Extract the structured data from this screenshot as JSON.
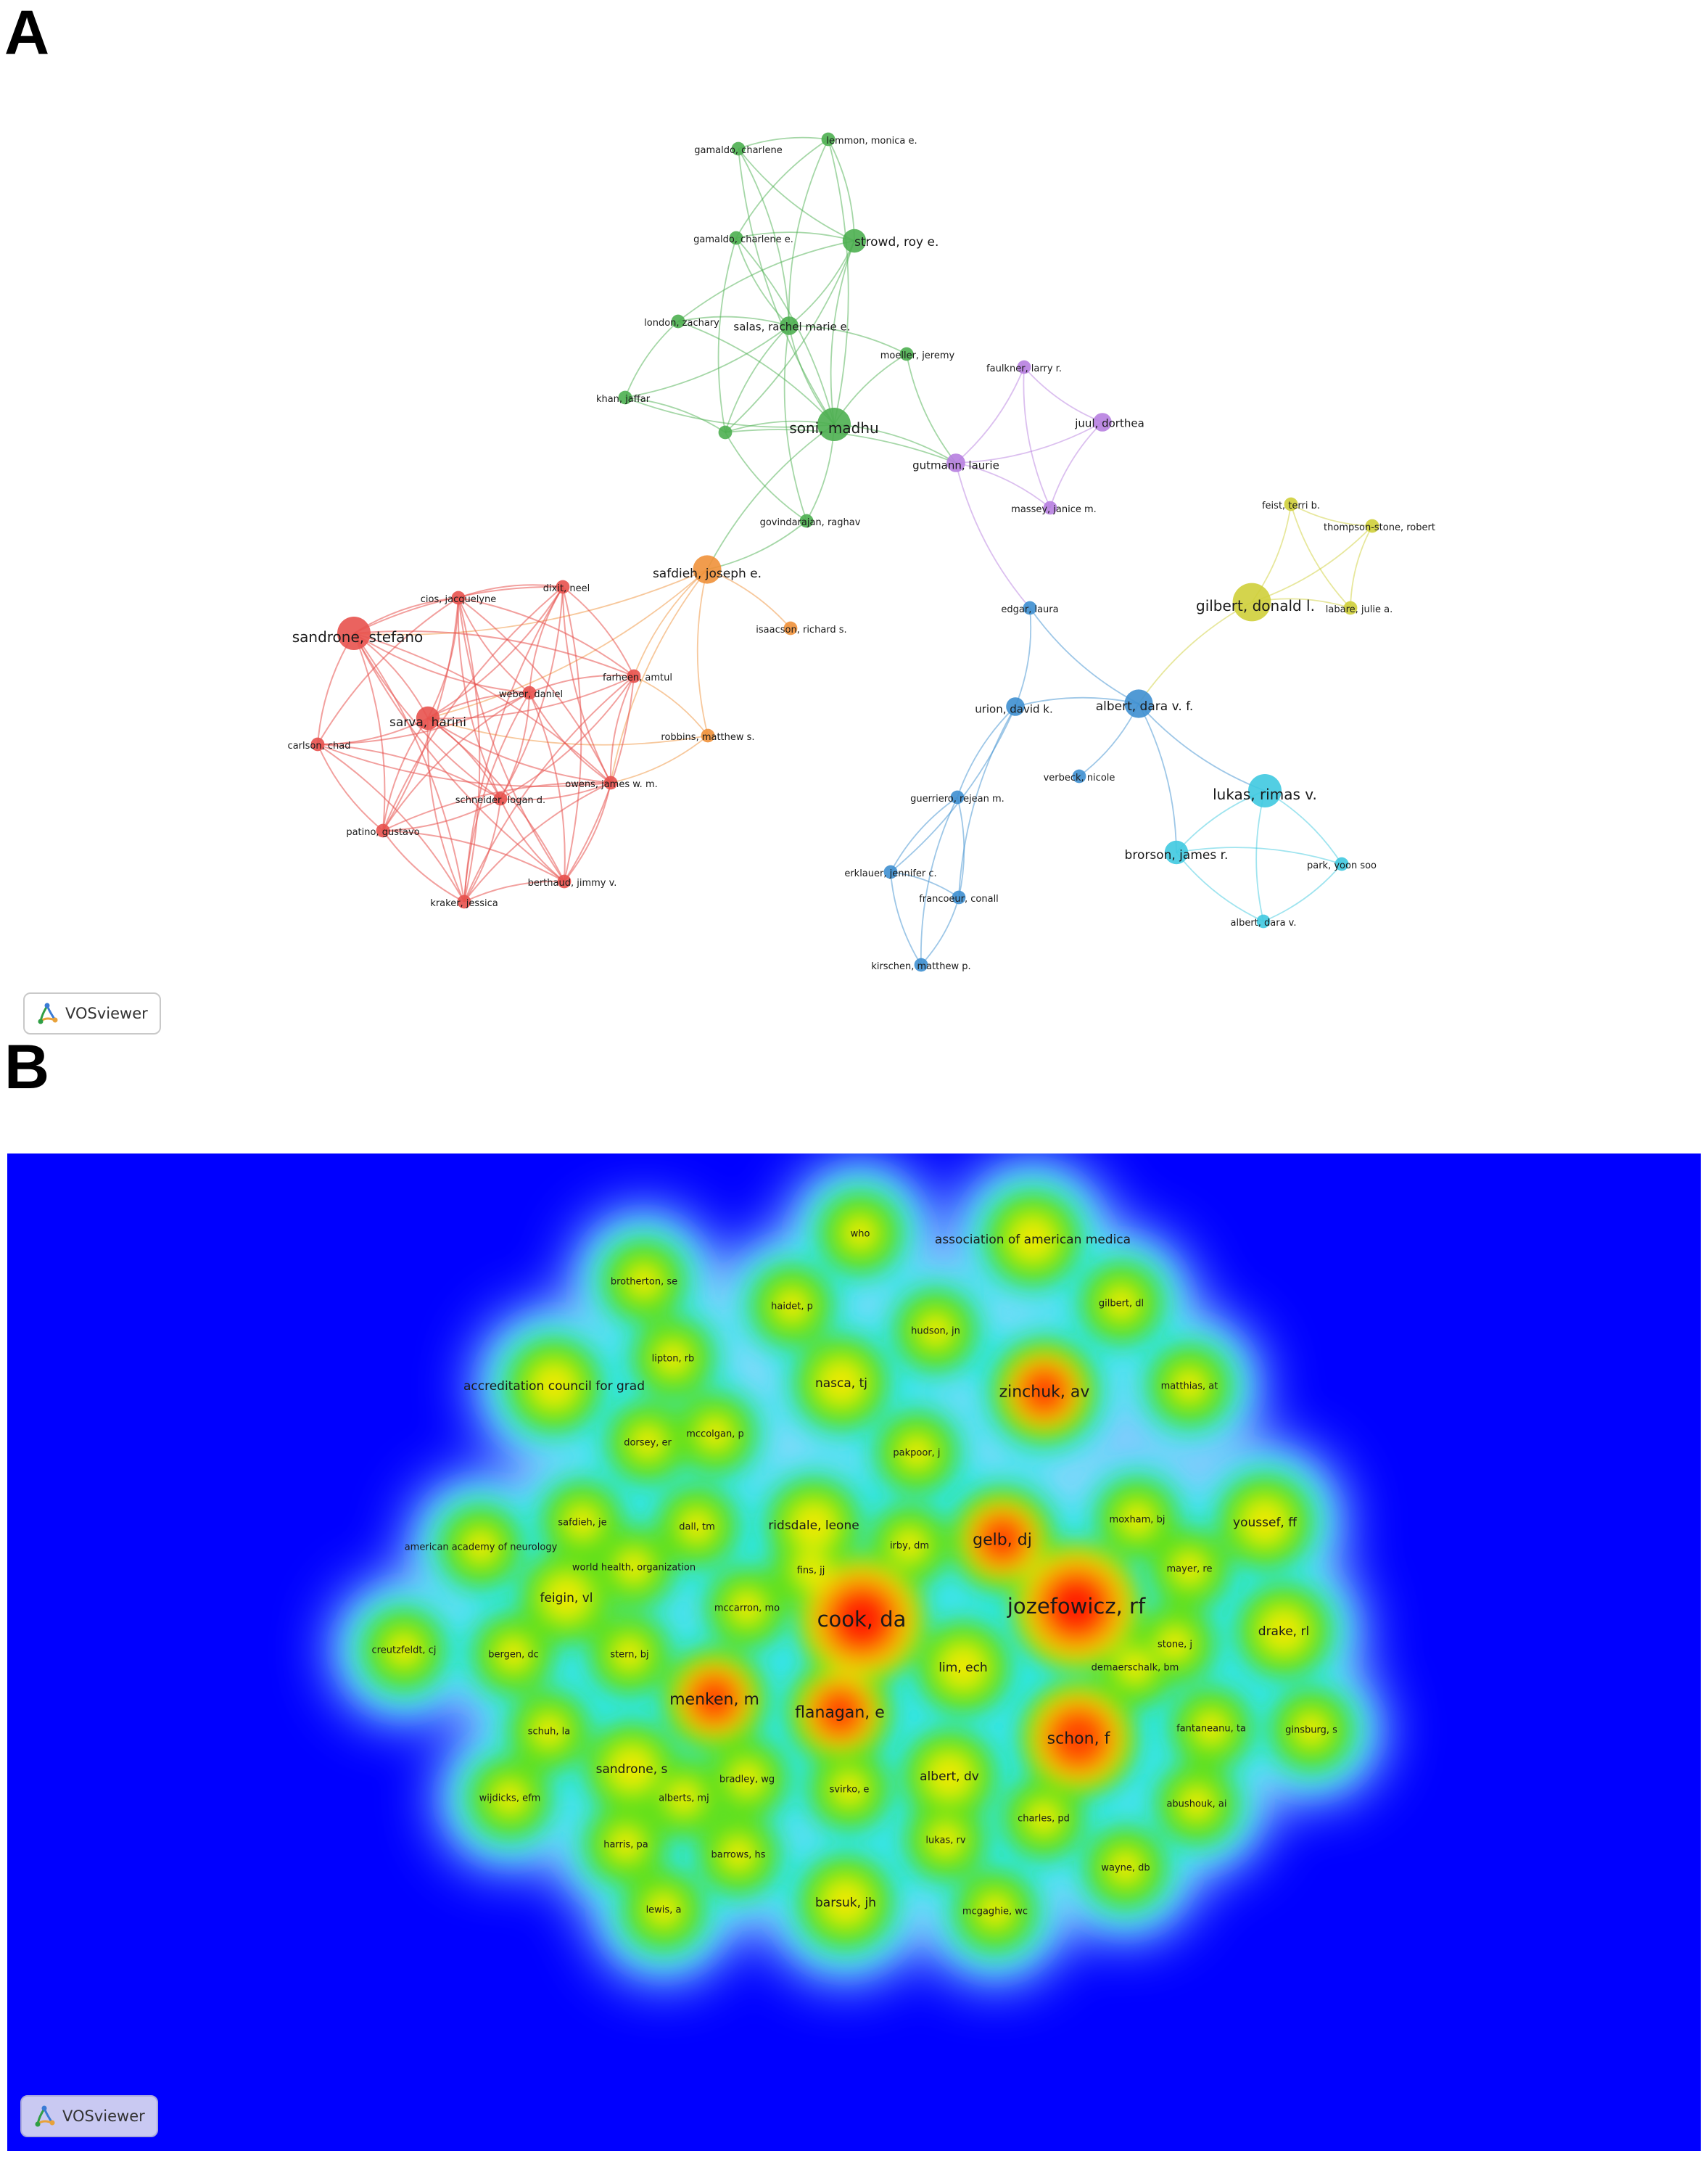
{
  "panel_a": {
    "letter": "A",
    "badge": {
      "icon": "vosviewer-logo-icon",
      "text": "VOSviewer"
    },
    "clusters": {
      "red": "#e8524e",
      "green": "#4caf50",
      "purple": "#b77fe0",
      "orange": "#f0913a",
      "yellow": "#cfcf3a",
      "blue": "#3e8fd0",
      "cyan": "#3fc9e0"
    },
    "nodes": [
      {
        "id": "gamaldo_charlene",
        "label": "gamaldo, charlene",
        "cluster": "green",
        "weight": 1
      },
      {
        "id": "lemmon",
        "label": "lemmon, monica e.",
        "cluster": "green",
        "weight": 1
      },
      {
        "id": "gamaldo_charlene_e",
        "label": "gamaldo, charlene e.",
        "cluster": "green",
        "weight": 1
      },
      {
        "id": "strowd",
        "label": "strowd, roy e.",
        "cluster": "green",
        "weight": 3
      },
      {
        "id": "london",
        "label": "london, zachary",
        "cluster": "green",
        "weight": 1
      },
      {
        "id": "salas",
        "label": "salas, rachel marie e.",
        "cluster": "green",
        "weight": 2
      },
      {
        "id": "moeller",
        "label": "moeller, jeremy",
        "cluster": "green",
        "weight": 1
      },
      {
        "id": "khan",
        "label": "khan, jaffar",
        "cluster": "green",
        "weight": 1
      },
      {
        "id": "soni",
        "label": "soni, madhu",
        "cluster": "green",
        "weight": 5
      },
      {
        "id": "green_unlabeled",
        "label": "",
        "cluster": "green",
        "weight": 1
      },
      {
        "id": "govindarajan",
        "label": "govindarajan, raghav",
        "cluster": "green",
        "weight": 1
      },
      {
        "id": "faulkner",
        "label": "faulkner, larry r.",
        "cluster": "purple",
        "weight": 1
      },
      {
        "id": "juul",
        "label": "juul, dorthea",
        "cluster": "purple",
        "weight": 2
      },
      {
        "id": "gutmann",
        "label": "gutmann, laurie",
        "cluster": "purple",
        "weight": 2
      },
      {
        "id": "massey",
        "label": "massey, janice m.",
        "cluster": "purple",
        "weight": 1
      },
      {
        "id": "safdieh",
        "label": "safdieh, joseph e.",
        "cluster": "orange",
        "weight": 4
      },
      {
        "id": "isaacson",
        "label": "isaacson, richard s.",
        "cluster": "orange",
        "weight": 1
      },
      {
        "id": "robbins",
        "label": "robbins, matthew s.",
        "cluster": "orange",
        "weight": 1
      },
      {
        "id": "feist",
        "label": "feist, terri b.",
        "cluster": "yellow",
        "weight": 1
      },
      {
        "id": "thompson",
        "label": "thompson-stone, robert",
        "cluster": "yellow",
        "weight": 1
      },
      {
        "id": "gilbert",
        "label": "gilbert, donald l.",
        "cluster": "yellow",
        "weight": 6
      },
      {
        "id": "labare",
        "label": "labare, julie a.",
        "cluster": "yellow",
        "weight": 1
      },
      {
        "id": "cios",
        "label": "cios, jacquelyne",
        "cluster": "red",
        "weight": 1
      },
      {
        "id": "dixit",
        "label": "dixit, neel",
        "cluster": "red",
        "weight": 1
      },
      {
        "id": "sandrone",
        "label": "sandrone, stefano",
        "cluster": "red",
        "weight": 5
      },
      {
        "id": "farheen",
        "label": "farheen, amtul",
        "cluster": "red",
        "weight": 1
      },
      {
        "id": "weber",
        "label": "weber, daniel",
        "cluster": "red",
        "weight": 1
      },
      {
        "id": "sarva",
        "label": "sarva, harini",
        "cluster": "red",
        "weight": 3
      },
      {
        "id": "carlson",
        "label": "carlson, chad",
        "cluster": "red",
        "weight": 1
      },
      {
        "id": "owens",
        "label": "owens, james w. m.",
        "cluster": "red",
        "weight": 1
      },
      {
        "id": "schneider",
        "label": "schneider, logan d.",
        "cluster": "red",
        "weight": 1
      },
      {
        "id": "patino",
        "label": "patino, gustavo",
        "cluster": "red",
        "weight": 1
      },
      {
        "id": "berthaud",
        "label": "berthaud, jimmy v.",
        "cluster": "red",
        "weight": 1
      },
      {
        "id": "kraker",
        "label": "kraker, jessica",
        "cluster": "red",
        "weight": 1
      },
      {
        "id": "edgar",
        "label": "edgar, laura",
        "cluster": "blue",
        "weight": 1
      },
      {
        "id": "urion",
        "label": "urion, david k.",
        "cluster": "blue",
        "weight": 2
      },
      {
        "id": "albert_dvf",
        "label": "albert, dara v. f.",
        "cluster": "blue",
        "weight": 4
      },
      {
        "id": "verbeck",
        "label": "verbeck, nicole",
        "cluster": "blue",
        "weight": 1
      },
      {
        "id": "guerriero",
        "label": "guerriero, rejean m.",
        "cluster": "blue",
        "weight": 1
      },
      {
        "id": "erklauer",
        "label": "erklauer, jennifer c.",
        "cluster": "blue",
        "weight": 1
      },
      {
        "id": "francoeur",
        "label": "francoeur, conall",
        "cluster": "blue",
        "weight": 1
      },
      {
        "id": "kirschen",
        "label": "kirschen, matthew p.",
        "cluster": "blue",
        "weight": 1
      },
      {
        "id": "lukas",
        "label": "lukas, rimas v.",
        "cluster": "cyan",
        "weight": 5
      },
      {
        "id": "brorson",
        "label": "brorson, james r.",
        "cluster": "cyan",
        "weight": 3
      },
      {
        "id": "park",
        "label": "park, yoon soo",
        "cluster": "cyan",
        "weight": 1
      },
      {
        "id": "albert_dv",
        "label": "albert, dara v.",
        "cluster": "cyan",
        "weight": 1
      }
    ],
    "edges": [
      [
        "gamaldo_charlene",
        "lemmon"
      ],
      [
        "gamaldo_charlene",
        "strowd"
      ],
      [
        "gamaldo_charlene",
        "salas"
      ],
      [
        "gamaldo_charlene",
        "soni"
      ],
      [
        "lemmon",
        "strowd"
      ],
      [
        "lemmon",
        "salas"
      ],
      [
        "lemmon",
        "soni"
      ],
      [
        "lemmon",
        "gamaldo_charlene_e"
      ],
      [
        "gamaldo_charlene_e",
        "strowd"
      ],
      [
        "gamaldo_charlene_e",
        "salas"
      ],
      [
        "gamaldo_charlene_e",
        "soni"
      ],
      [
        "gamaldo_charlene_e",
        "green_unlabeled"
      ],
      [
        "strowd",
        "salas"
      ],
      [
        "strowd",
        "soni"
      ],
      [
        "strowd",
        "green_unlabeled"
      ],
      [
        "strowd",
        "london"
      ],
      [
        "london",
        "salas"
      ],
      [
        "london",
        "khan"
      ],
      [
        "london",
        "soni"
      ],
      [
        "salas",
        "soni"
      ],
      [
        "salas",
        "moeller"
      ],
      [
        "salas",
        "green_unlabeled"
      ],
      [
        "salas",
        "khan"
      ],
      [
        "salas",
        "govindarajan"
      ],
      [
        "khan",
        "green_unlabeled"
      ],
      [
        "khan",
        "soni"
      ],
      [
        "soni",
        "moeller"
      ],
      [
        "soni",
        "green_unlabeled"
      ],
      [
        "soni",
        "govindarajan"
      ],
      [
        "soni",
        "safdieh"
      ],
      [
        "soni",
        "gutmann"
      ],
      [
        "green_unlabeled",
        "govindarajan"
      ],
      [
        "green_unlabeled",
        "gutmann"
      ],
      [
        "moeller",
        "gutmann"
      ],
      [
        "govindarajan",
        "safdieh"
      ],
      [
        "faulkner",
        "juul"
      ],
      [
        "faulkner",
        "gutmann"
      ],
      [
        "faulkner",
        "massey"
      ],
      [
        "juul",
        "gutmann"
      ],
      [
        "juul",
        "massey"
      ],
      [
        "gutmann",
        "massey"
      ],
      [
        "gutmann",
        "edgar"
      ],
      [
        "safdieh",
        "isaacson"
      ],
      [
        "safdieh",
        "robbins"
      ],
      [
        "safdieh",
        "sandrone"
      ],
      [
        "safdieh",
        "farheen"
      ],
      [
        "safdieh",
        "sarva"
      ],
      [
        "safdieh",
        "owens"
      ],
      [
        "robbins",
        "sarva"
      ],
      [
        "robbins",
        "farheen"
      ],
      [
        "robbins",
        "owens"
      ],
      [
        "feist",
        "thompson"
      ],
      [
        "feist",
        "gilbert"
      ],
      [
        "feist",
        "labare"
      ],
      [
        "thompson",
        "gilbert"
      ],
      [
        "thompson",
        "labare"
      ],
      [
        "gilbert",
        "labare"
      ],
      [
        "gilbert",
        "albert_dvf"
      ],
      [
        "cios",
        "dixit"
      ],
      [
        "cios",
        "sandrone"
      ],
      [
        "cios",
        "farheen"
      ],
      [
        "cios",
        "weber"
      ],
      [
        "cios",
        "sarva"
      ],
      [
        "cios",
        "carlson"
      ],
      [
        "cios",
        "owens"
      ],
      [
        "cios",
        "schneider"
      ],
      [
        "cios",
        "patino"
      ],
      [
        "cios",
        "berthaud"
      ],
      [
        "cios",
        "kraker"
      ],
      [
        "dixit",
        "sandrone"
      ],
      [
        "dixit",
        "farheen"
      ],
      [
        "dixit",
        "weber"
      ],
      [
        "dixit",
        "sarva"
      ],
      [
        "dixit",
        "owens"
      ],
      [
        "dixit",
        "schneider"
      ],
      [
        "dixit",
        "patino"
      ],
      [
        "dixit",
        "berthaud"
      ],
      [
        "dixit",
        "kraker"
      ],
      [
        "sandrone",
        "farheen"
      ],
      [
        "sandrone",
        "weber"
      ],
      [
        "sandrone",
        "sarva"
      ],
      [
        "sandrone",
        "carlson"
      ],
      [
        "sandrone",
        "owens"
      ],
      [
        "sandrone",
        "schneider"
      ],
      [
        "sandrone",
        "patino"
      ],
      [
        "sandrone",
        "berthaud"
      ],
      [
        "sandrone",
        "kraker"
      ],
      [
        "farheen",
        "weber"
      ],
      [
        "farheen",
        "sarva"
      ],
      [
        "farheen",
        "owens"
      ],
      [
        "farheen",
        "schneider"
      ],
      [
        "farheen",
        "kraker"
      ],
      [
        "farheen",
        "berthaud"
      ],
      [
        "weber",
        "sarva"
      ],
      [
        "weber",
        "carlson"
      ],
      [
        "weber",
        "owens"
      ],
      [
        "weber",
        "schneider"
      ],
      [
        "weber",
        "patino"
      ],
      [
        "weber",
        "berthaud"
      ],
      [
        "weber",
        "kraker"
      ],
      [
        "sarva",
        "carlson"
      ],
      [
        "sarva",
        "owens"
      ],
      [
        "sarva",
        "schneider"
      ],
      [
        "sarva",
        "patino"
      ],
      [
        "sarva",
        "berthaud"
      ],
      [
        "sarva",
        "kraker"
      ],
      [
        "carlson",
        "schneider"
      ],
      [
        "carlson",
        "patino"
      ],
      [
        "carlson",
        "kraker"
      ],
      [
        "carlson",
        "owens"
      ],
      [
        "owens",
        "schneider"
      ],
      [
        "owens",
        "patino"
      ],
      [
        "owens",
        "berthaud"
      ],
      [
        "owens",
        "kraker"
      ],
      [
        "schneider",
        "patino"
      ],
      [
        "schneider",
        "berthaud"
      ],
      [
        "schneider",
        "kraker"
      ],
      [
        "patino",
        "kraker"
      ],
      [
        "patino",
        "berthaud"
      ],
      [
        "berthaud",
        "kraker"
      ],
      [
        "edgar",
        "urion"
      ],
      [
        "edgar",
        "albert_dvf"
      ],
      [
        "urion",
        "albert_dvf"
      ],
      [
        "urion",
        "guerriero"
      ],
      [
        "urion",
        "erklauer"
      ],
      [
        "urion",
        "francoeur"
      ],
      [
        "albert_dvf",
        "verbeck"
      ],
      [
        "albert_dvf",
        "lukas"
      ],
      [
        "albert_dvf",
        "brorson"
      ],
      [
        "guerriero",
        "erklauer"
      ],
      [
        "guerriero",
        "francoeur"
      ],
      [
        "guerriero",
        "kirschen"
      ],
      [
        "erklauer",
        "francoeur"
      ],
      [
        "erklauer",
        "kirschen"
      ],
      [
        "francoeur",
        "kirschen"
      ],
      [
        "lukas",
        "brorson"
      ],
      [
        "lukas",
        "park"
      ],
      [
        "lukas",
        "albert_dv"
      ],
      [
        "brorson",
        "park"
      ],
      [
        "brorson",
        "albert_dv"
      ],
      [
        "park",
        "albert_dv"
      ]
    ]
  },
  "panel_b": {
    "letter": "B",
    "badge": {
      "icon": "vosviewer-logo-icon",
      "text": "VOSviewer"
    },
    "background": "#0000ff",
    "items": [
      {
        "label": "who",
        "weight": 1
      },
      {
        "label": "association of american medica",
        "weight": 2
      },
      {
        "label": "brotherton, se",
        "weight": 1
      },
      {
        "label": "haidet, p",
        "weight": 1
      },
      {
        "label": "gilbert, dl",
        "weight": 1
      },
      {
        "label": "hudson, jn",
        "weight": 1
      },
      {
        "label": "lipton, rb",
        "weight": 1
      },
      {
        "label": "accreditation council for grad",
        "weight": 2
      },
      {
        "label": "nasca, tj",
        "weight": 2
      },
      {
        "label": "zinchuk, av",
        "weight": 3
      },
      {
        "label": "matthias, at",
        "weight": 1
      },
      {
        "label": "mccolgan, p",
        "weight": 1
      },
      {
        "label": "dorsey, er",
        "weight": 1
      },
      {
        "label": "pakpoor, j",
        "weight": 1
      },
      {
        "label": "safdieh, je",
        "weight": 1
      },
      {
        "label": "dall, tm",
        "weight": 1
      },
      {
        "label": "ridsdale, leone",
        "weight": 2
      },
      {
        "label": "gelb, dj",
        "weight": 3
      },
      {
        "label": "moxham, bj",
        "weight": 1
      },
      {
        "label": "youssef, ff",
        "weight": 2
      },
      {
        "label": "american academy of neurology",
        "weight": 1
      },
      {
        "label": "irby, dm",
        "weight": 1
      },
      {
        "label": "world health, organization",
        "weight": 1
      },
      {
        "label": "fins, jj",
        "weight": 1
      },
      {
        "label": "mayer, re",
        "weight": 1
      },
      {
        "label": "feigin, vl",
        "weight": 2
      },
      {
        "label": "mccarron, mo",
        "weight": 1
      },
      {
        "label": "cook, da",
        "weight": 5
      },
      {
        "label": "jozefowicz, rf",
        "weight": 5
      },
      {
        "label": "drake, rl",
        "weight": 2
      },
      {
        "label": "creutzfeldt, cj",
        "weight": 1
      },
      {
        "label": "bergen, dc",
        "weight": 1
      },
      {
        "label": "stern, bj",
        "weight": 1
      },
      {
        "label": "stone, j",
        "weight": 1
      },
      {
        "label": "lim, ech",
        "weight": 2
      },
      {
        "label": "demaerschalk, bm",
        "weight": 1
      },
      {
        "label": "menken, m",
        "weight": 3
      },
      {
        "label": "flanagan, e",
        "weight": 3
      },
      {
        "label": "schuh, la",
        "weight": 1
      },
      {
        "label": "fantaneanu, ta",
        "weight": 1
      },
      {
        "label": "ginsburg, s",
        "weight": 1
      },
      {
        "label": "schon, f",
        "weight": 4
      },
      {
        "label": "sandrone, s",
        "weight": 2
      },
      {
        "label": "albert, dv",
        "weight": 2
      },
      {
        "label": "bradley, wg",
        "weight": 1
      },
      {
        "label": "abushouk, ai",
        "weight": 1
      },
      {
        "label": "wijdicks, efm",
        "weight": 1
      },
      {
        "label": "alberts, mj",
        "weight": 1
      },
      {
        "label": "svirko, e",
        "weight": 1
      },
      {
        "label": "charles, pd",
        "weight": 1
      },
      {
        "label": "harris, pa",
        "weight": 1
      },
      {
        "label": "barrows, hs",
        "weight": 1
      },
      {
        "label": "lukas, rv",
        "weight": 1
      },
      {
        "label": "wayne, db",
        "weight": 1
      },
      {
        "label": "lewis, a",
        "weight": 1
      },
      {
        "label": "barsuk, jh",
        "weight": 2
      },
      {
        "label": "mcgaghie, wc",
        "weight": 1
      }
    ]
  }
}
